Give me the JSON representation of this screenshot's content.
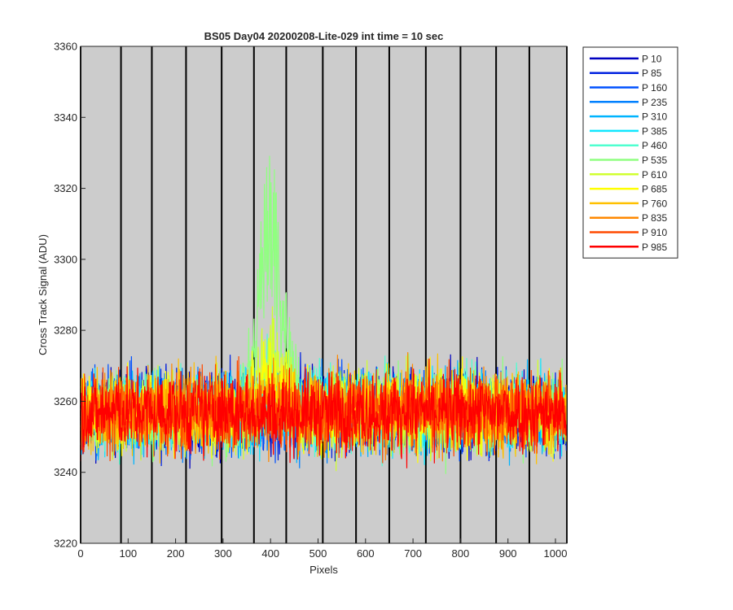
{
  "chart_data": {
    "type": "line",
    "title": "BS05 Day04 20200208-Lite-029 int time = 10 sec",
    "xlabel": "Pixels",
    "ylabel": "Cross Track Signal (ADU)",
    "xlim": [
      0,
      1024
    ],
    "ylim": [
      3220,
      3360
    ],
    "xticks": [
      0,
      100,
      200,
      300,
      400,
      500,
      600,
      700,
      800,
      900,
      1000
    ],
    "yticks": [
      3220,
      3240,
      3260,
      3280,
      3300,
      3320,
      3340,
      3360
    ],
    "vertical_lines_x": [
      0,
      85,
      150,
      222,
      297,
      365,
      433,
      510,
      580,
      650,
      727,
      800,
      875,
      945,
      1024
    ],
    "grid": false,
    "plot_background": "#cccccc",
    "legend_position": "outside-right-top",
    "baseline": 3257,
    "noise_amplitude": 10,
    "series": [
      {
        "name": "P 10",
        "color": "#0000c0",
        "peak": 0
      },
      {
        "name": "P 85",
        "color": "#0022e0",
        "peak": 0
      },
      {
        "name": "P 160",
        "color": "#0050ff",
        "peak": 0
      },
      {
        "name": "P 235",
        "color": "#0080ff",
        "peak": 0
      },
      {
        "name": "P 310",
        "color": "#00b4ff",
        "peak": 2
      },
      {
        "name": "P 385",
        "color": "#10e8ff",
        "peak": 6
      },
      {
        "name": "P 460",
        "color": "#50ffd0",
        "peak": 10
      },
      {
        "name": "P 535",
        "color": "#90ff80",
        "peak": 70
      },
      {
        "name": "P 610",
        "color": "#d0ff30",
        "peak": 22
      },
      {
        "name": "P 685",
        "color": "#ffff00",
        "peak": 12
      },
      {
        "name": "P 760",
        "color": "#ffc000",
        "peak": 5
      },
      {
        "name": "P 835",
        "color": "#ff8800",
        "peak": 2
      },
      {
        "name": "P 910",
        "color": "#ff4a00",
        "peak": 0
      },
      {
        "name": "P 985",
        "color": "#ff0000",
        "peak": 0
      }
    ]
  }
}
